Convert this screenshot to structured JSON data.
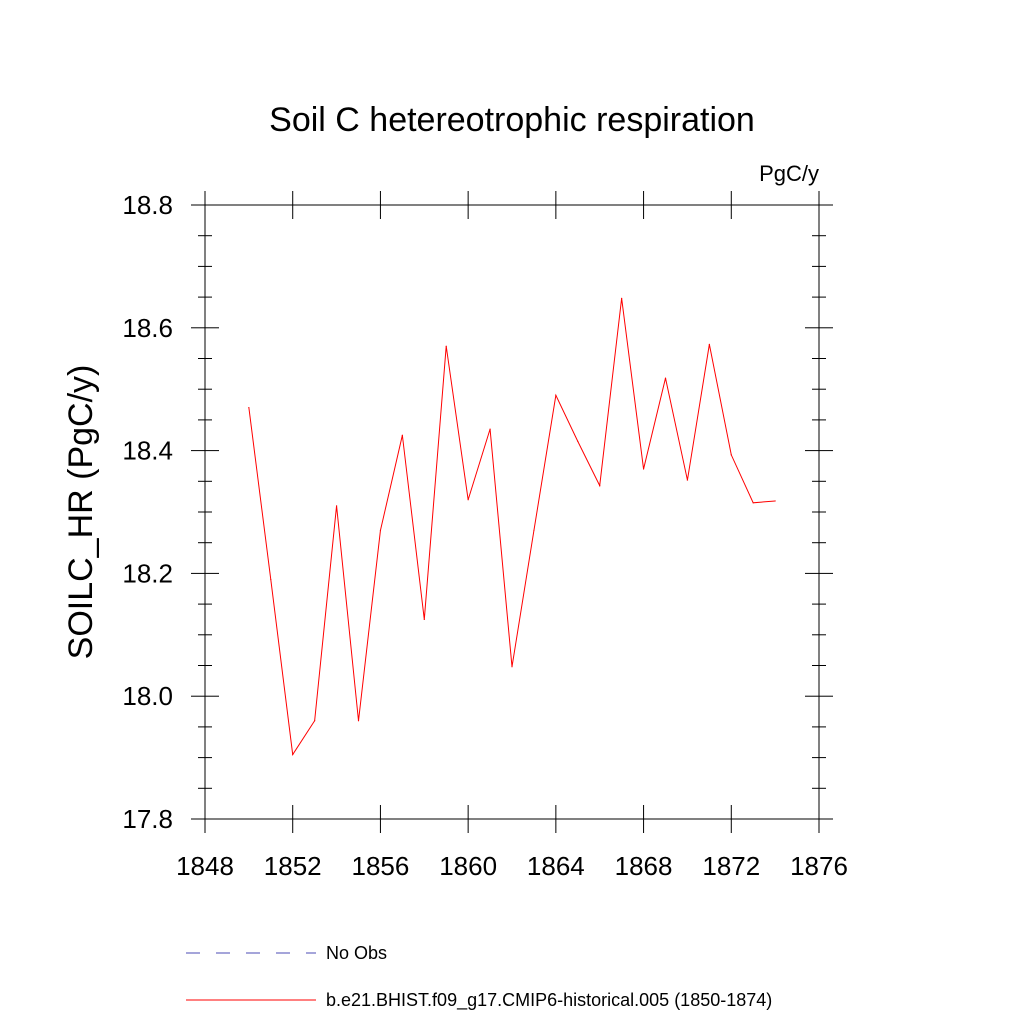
{
  "chart_data": {
    "type": "line",
    "title": "Soil C hetereotrophic respiration",
    "units": "PgC/y",
    "ylabel": "SOILC_HR  (PgC/y)",
    "xlabel": "",
    "xlim": [
      1848,
      1876
    ],
    "ylim": [
      17.8,
      18.8
    ],
    "x_ticks": [
      "1848",
      "1852",
      "1856",
      "1860",
      "1864",
      "1868",
      "1872",
      "1876"
    ],
    "y_ticks": [
      "17.8",
      "18.0",
      "18.2",
      "18.4",
      "18.6",
      "18.8"
    ],
    "grid": false,
    "legend_position": "bottom",
    "x": [
      1850,
      1851,
      1852,
      1853,
      1854,
      1855,
      1856,
      1857,
      1858,
      1859,
      1860,
      1861,
      1862,
      1863,
      1864,
      1865,
      1866,
      1867,
      1868,
      1869,
      1870,
      1871,
      1872,
      1873,
      1874
    ],
    "series": [
      {
        "name": "b.e21.BHIST.f09_g17.CMIP6-historical.005 (1850-1874)",
        "color": "#ff0000",
        "style": "solid",
        "values": [
          18.47,
          18.19,
          17.905,
          17.96,
          18.31,
          17.96,
          18.27,
          18.425,
          18.125,
          18.57,
          18.32,
          18.435,
          18.048,
          18.27,
          18.49,
          18.415,
          18.343,
          18.648,
          18.37,
          18.518,
          18.352,
          18.573,
          18.393,
          18.315,
          18.318
        ]
      }
    ],
    "legend": [
      {
        "label": "No Obs",
        "color": "#4b4bb4",
        "style": "dashed"
      },
      {
        "label": "b.e21.BHIST.f09_g17.CMIP6-historical.005 (1850-1874)",
        "color": "#ff0000",
        "style": "solid"
      }
    ]
  }
}
